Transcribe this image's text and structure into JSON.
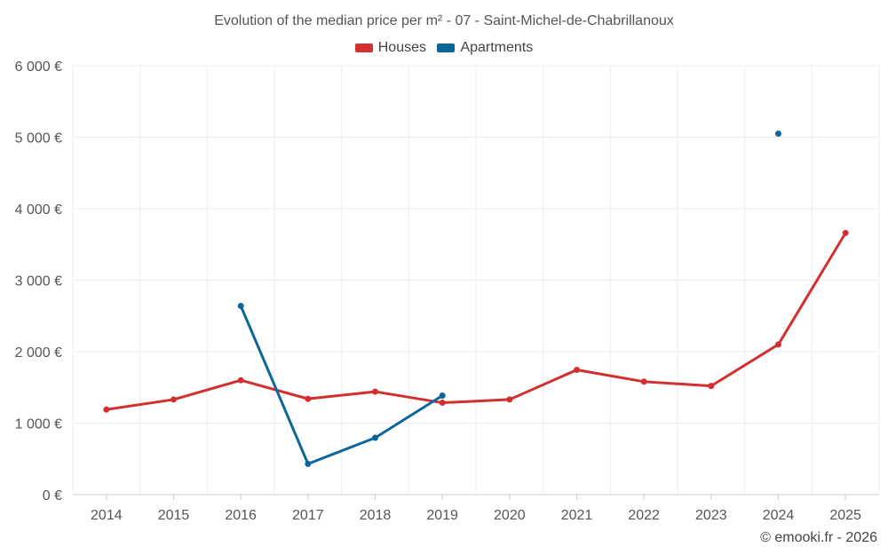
{
  "chart_data": {
    "type": "line",
    "title": "Evolution of the median price per m² - 07 - Saint-Michel-de-Chabrillanoux",
    "categories": [
      "2014",
      "2015",
      "2016",
      "2017",
      "2018",
      "2019",
      "2020",
      "2021",
      "2022",
      "2023",
      "2024",
      "2025"
    ],
    "series": [
      {
        "name": "Houses",
        "color": "#d32f2f",
        "values": [
          1190,
          1330,
          1600,
          1340,
          1440,
          1285,
          1330,
          1745,
          1580,
          1520,
          2100,
          3660
        ]
      },
      {
        "name": "Apartments",
        "color": "#0b679b",
        "values": [
          null,
          null,
          2640,
          430,
          795,
          1385,
          null,
          null,
          null,
          null,
          5050,
          null
        ]
      }
    ],
    "y_ticks": [
      "0 €",
      "1 000 €",
      "2 000 €",
      "3 000 €",
      "4 000 €",
      "5 000 €",
      "6 000 €"
    ],
    "ylim": [
      0,
      6000
    ],
    "xlabel": "",
    "ylabel": "",
    "legend_position": "top-center",
    "grid": true
  },
  "credit": "© emooki.fr - 2026"
}
